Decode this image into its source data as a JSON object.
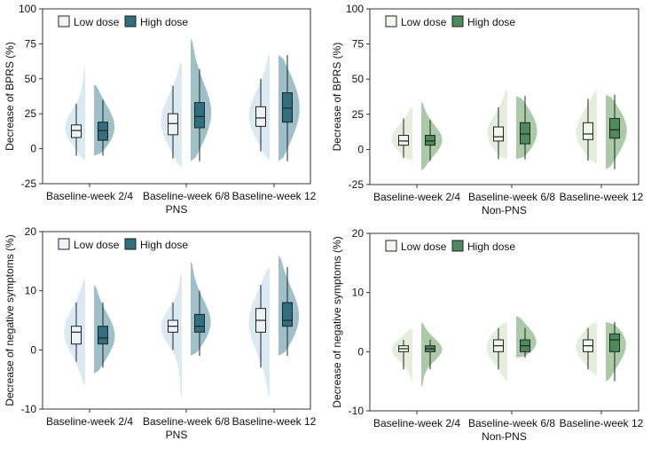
{
  "legend_labels": [
    "Low dose",
    "High dose"
  ],
  "palettes": {
    "pns": {
      "low_violin": "#dbe9f2",
      "low_box": "#edf4f8",
      "high_violin": "#9ec0c9",
      "high_box": "#2f6f7e"
    },
    "nonpns": {
      "low_violin": "#e3efdc",
      "low_box": "#f1f7ec",
      "high_violin": "#aacaa8",
      "high_box": "#4f8a5c"
    }
  },
  "chart_data": [
    {
      "id": "tl",
      "type": "violin-box",
      "palette": "pns",
      "ylabel": "Decrease of BPRS (%)",
      "xlabel": "PNS",
      "ylim": [
        -25,
        100
      ],
      "yticks": [
        -25,
        0,
        25,
        50,
        75,
        100
      ],
      "categories": [
        "Baseline-week 2/4",
        "Baseline-week 6/8",
        "Baseline-week 12"
      ],
      "series": [
        {
          "name": "Low dose",
          "groups": [
            {
              "range": [
                -8,
                58
              ],
              "whisker": [
                -5,
                32
              ],
              "q1": 8,
              "median": 13,
              "q3": 17
            },
            {
              "range": [
                -13,
                62
              ],
              "whisker": [
                -7,
                45
              ],
              "q1": 10,
              "median": 18,
              "q3": 25
            },
            {
              "range": [
                -8,
                68
              ],
              "whisker": [
                -2,
                50
              ],
              "q1": 16,
              "median": 22,
              "q3": 30
            }
          ]
        },
        {
          "name": "High dose",
          "groups": [
            {
              "range": [
                -5,
                46
              ],
              "whisker": [
                -5,
                35
              ],
              "q1": 6,
              "median": 13,
              "q3": 19
            },
            {
              "range": [
                -9,
                79
              ],
              "whisker": [
                -9,
                57
              ],
              "q1": 15,
              "median": 23,
              "q3": 33
            },
            {
              "range": [
                -9,
                67
              ],
              "whisker": [
                -9,
                67
              ],
              "q1": 19,
              "median": 29,
              "q3": 40
            }
          ]
        }
      ]
    },
    {
      "id": "tr",
      "type": "violin-box",
      "palette": "nonpns",
      "ylabel": "Decrease of BPRS (%)",
      "xlabel": "Non-PNS",
      "ylim": [
        -25,
        100
      ],
      "yticks": [
        -25,
        0,
        25,
        50,
        75,
        100
      ],
      "categories": [
        "Baseline-week 2/4",
        "Baseline-week 6/8",
        "Baseline-week 12"
      ],
      "series": [
        {
          "name": "Low dose",
          "groups": [
            {
              "range": [
                -8,
                30
              ],
              "whisker": [
                -6,
                22
              ],
              "q1": 3,
              "median": 6,
              "q3": 10
            },
            {
              "range": [
                -7,
                43
              ],
              "whisker": [
                -7,
                30
              ],
              "q1": 6,
              "median": 9,
              "q3": 16
            },
            {
              "range": [
                -10,
                42
              ],
              "whisker": [
                -8,
                36
              ],
              "q1": 7,
              "median": 11,
              "q3": 19
            }
          ]
        },
        {
          "name": "High dose",
          "groups": [
            {
              "range": [
                -15,
                34
              ],
              "whisker": [
                -8,
                21
              ],
              "q1": 3,
              "median": 6,
              "q3": 10
            },
            {
              "range": [
                -7,
                38
              ],
              "whisker": [
                -7,
                38
              ],
              "q1": 4,
              "median": 11,
              "q3": 19
            },
            {
              "range": [
                -14,
                39
              ],
              "whisker": [
                -14,
                39
              ],
              "q1": 8,
              "median": 14,
              "q3": 22
            }
          ]
        }
      ]
    },
    {
      "id": "bl",
      "type": "violin-box",
      "palette": "pns",
      "ylabel": "Decrease of negative symptoms (%)",
      "xlabel": "PNS",
      "ylim": [
        -10,
        20
      ],
      "yticks": [
        -10,
        0,
        10,
        20
      ],
      "categories": [
        "Baseline-week 2/4",
        "Baseline-week 6/8",
        "Baseline-week 12"
      ],
      "series": [
        {
          "name": "Low dose",
          "groups": [
            {
              "range": [
                -6,
                12
              ],
              "whisker": [
                -2,
                8
              ],
              "q1": 1,
              "median": 3,
              "q3": 4
            },
            {
              "range": [
                -8,
                13
              ],
              "whisker": [
                0,
                8
              ],
              "q1": 3,
              "median": 4,
              "q3": 5
            },
            {
              "range": [
                -8,
                14
              ],
              "whisker": [
                -3,
                11
              ],
              "q1": 3,
              "median": 5,
              "q3": 7
            }
          ]
        },
        {
          "name": "High dose",
          "groups": [
            {
              "range": [
                -4,
                11
              ],
              "whisker": [
                -3,
                8
              ],
              "q1": 1,
              "median": 2,
              "q3": 4
            },
            {
              "range": [
                -1,
                15
              ],
              "whisker": [
                -1,
                10
              ],
              "q1": 3,
              "median": 4,
              "q3": 6
            },
            {
              "range": [
                -1,
                16
              ],
              "whisker": [
                -1,
                14
              ],
              "q1": 4,
              "median": 5,
              "q3": 8
            }
          ]
        }
      ]
    },
    {
      "id": "br",
      "type": "violin-box",
      "palette": "nonpns",
      "ylabel": "Decrease of negative symptoms (%)",
      "xlabel": "Non-PNS",
      "ylim": [
        -10,
        20
      ],
      "yticks": [
        -10,
        0,
        10,
        20
      ],
      "categories": [
        "Baseline-week 2/4",
        "Baseline-week 6/8",
        "Baseline-week 12"
      ],
      "series": [
        {
          "name": "Low dose",
          "groups": [
            {
              "range": [
                -5,
                4
              ],
              "whisker": [
                -3,
                2
              ],
              "q1": 0,
              "median": 0.5,
              "q3": 1
            },
            {
              "range": [
                -5,
                5
              ],
              "whisker": [
                -3,
                4
              ],
              "q1": 0,
              "median": 1,
              "q3": 2
            },
            {
              "range": [
                -4,
                5
              ],
              "whisker": [
                -3,
                4
              ],
              "q1": 0,
              "median": 1,
              "q3": 2
            }
          ]
        },
        {
          "name": "High dose",
          "groups": [
            {
              "range": [
                -6,
                5
              ],
              "whisker": [
                -3,
                2
              ],
              "q1": 0,
              "median": 0.5,
              "q3": 1
            },
            {
              "range": [
                -1,
                6
              ],
              "whisker": [
                -1,
                4
              ],
              "q1": 0,
              "median": 1,
              "q3": 2
            },
            {
              "range": [
                -5,
                5
              ],
              "whisker": [
                -5,
                5
              ],
              "q1": 0,
              "median": 2,
              "q3": 3
            }
          ]
        }
      ]
    }
  ]
}
